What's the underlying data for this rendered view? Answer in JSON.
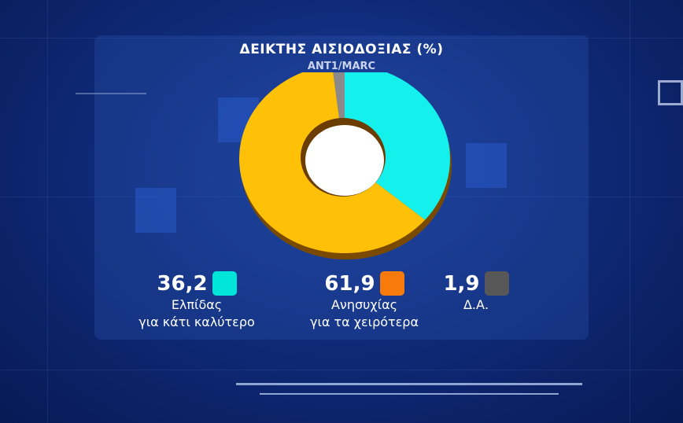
{
  "chart_data": {
    "type": "pie",
    "style": "donut",
    "title": "ΔΕΙΚΤΗΣ ΑΙΣΙΟΔΟΞΙΑΣ (%)",
    "subtitle": "ANT1/MARC",
    "categories": [
      "Ελπίδας για κάτι καλύτερο",
      "Ανησυχίας για τα χειρότερα",
      "Δ.Α."
    ],
    "values": [
      36.2,
      61.9,
      1.9
    ],
    "value_labels": [
      "36,2",
      "61,9",
      "1,9"
    ],
    "label_lines": [
      [
        "Ελπίδας",
        "για κάτι καλύτερο"
      ],
      [
        "Ανησυχίας",
        "για τα χειρότερα"
      ],
      [
        "Δ.Α."
      ]
    ],
    "slice_colors": [
      "#14f0ec",
      "#ffc107",
      "#8a8a8a"
    ],
    "legend_colors": [
      "#00e5d8",
      "#f77b0a",
      "#575757"
    ],
    "legend": "bottom"
  }
}
